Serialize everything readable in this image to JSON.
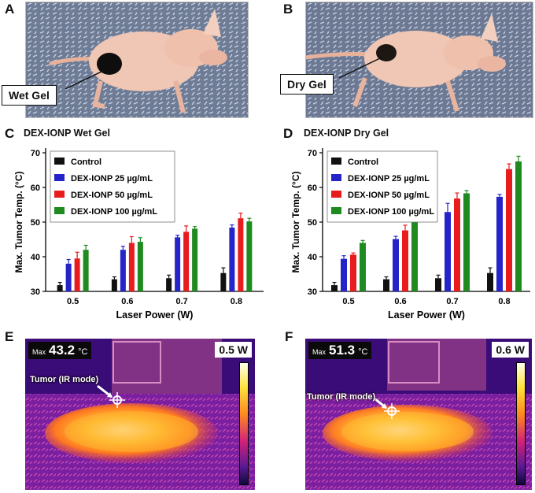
{
  "panels": {
    "A": {
      "letter": "A",
      "callout": "Wet Gel"
    },
    "B": {
      "letter": "B",
      "callout": "Dry Gel"
    },
    "C": {
      "letter": "C",
      "title": "DEX-IONP Wet Gel"
    },
    "D": {
      "letter": "D",
      "title": "DEX-IONP Dry Gel"
    },
    "E": {
      "letter": "E",
      "max_label": "Max",
      "max_value": "43.2",
      "unit": "°C",
      "power": "0.5 W",
      "tumor_label": "Tumor (IR mode)"
    },
    "F": {
      "letter": "F",
      "max_label": "Max",
      "max_value": "51.3",
      "unit": "°C",
      "power": "0.6 W",
      "tumor_label": "Tumor (IR mode)"
    }
  },
  "colors": {
    "Control": "#111111",
    "DEX-IONP 25 µg/mL": "#2424c8",
    "DEX-IONP 50 µg/mL": "#e81c1c",
    "DEX-IONP 100 µg/mL": "#1f8a1f"
  },
  "chart_data": [
    {
      "type": "bar",
      "title": "DEX-IONP Wet Gel",
      "xlabel": "Laser Power (W)",
      "ylabel": "Max. Tumor Temp. (°C)",
      "categories": [
        "0.5",
        "0.6",
        "0.7",
        "0.8"
      ],
      "ylim": [
        30,
        70
      ],
      "yticks": [
        30,
        40,
        50,
        60,
        70
      ],
      "legend_position": "top-left",
      "series": [
        {
          "name": "Control",
          "values": [
            31.8,
            33.5,
            33.8,
            35.3
          ],
          "errors": [
            0.8,
            0.7,
            0.9,
            1.5
          ]
        },
        {
          "name": "DEX-IONP 25 µg/mL",
          "values": [
            38.0,
            42.0,
            45.6,
            48.4
          ],
          "errors": [
            1.2,
            1.0,
            0.6,
            0.8
          ]
        },
        {
          "name": "DEX-IONP 50 µg/mL",
          "values": [
            39.5,
            44.0,
            47.2,
            51.1
          ],
          "errors": [
            1.8,
            1.8,
            1.7,
            1.5
          ]
        },
        {
          "name": "DEX-IONP 100 µg/mL",
          "values": [
            42.0,
            44.3,
            48.1,
            50.2
          ],
          "errors": [
            1.3,
            1.2,
            0.6,
            0.9
          ]
        }
      ]
    },
    {
      "type": "bar",
      "title": "DEX-IONP Dry Gel",
      "xlabel": "Laser Power (W)",
      "ylabel": "Max. Tumor Temp. (°C)",
      "categories": [
        "0.5",
        "0.6",
        "0.7",
        "0.8"
      ],
      "ylim": [
        30,
        70
      ],
      "yticks": [
        30,
        40,
        50,
        60,
        70
      ],
      "legend_position": "top-left",
      "series": [
        {
          "name": "Control",
          "values": [
            31.8,
            33.5,
            33.8,
            35.3
          ],
          "errors": [
            0.8,
            0.7,
            0.9,
            1.5
          ]
        },
        {
          "name": "DEX-IONP 25 µg/mL",
          "values": [
            39.4,
            45.1,
            52.9,
            57.3
          ],
          "errors": [
            0.9,
            0.8,
            2.5,
            0.7
          ]
        },
        {
          "name": "DEX-IONP 50 µg/mL",
          "values": [
            40.6,
            47.6,
            56.8,
            65.3
          ],
          "errors": [
            0.5,
            1.5,
            1.6,
            1.5
          ]
        },
        {
          "name": "DEX-IONP 100 µg/mL",
          "values": [
            44.0,
            51.1,
            58.3,
            67.5
          ],
          "errors": [
            0.7,
            0.2,
            0.8,
            1.5
          ]
        }
      ]
    }
  ]
}
